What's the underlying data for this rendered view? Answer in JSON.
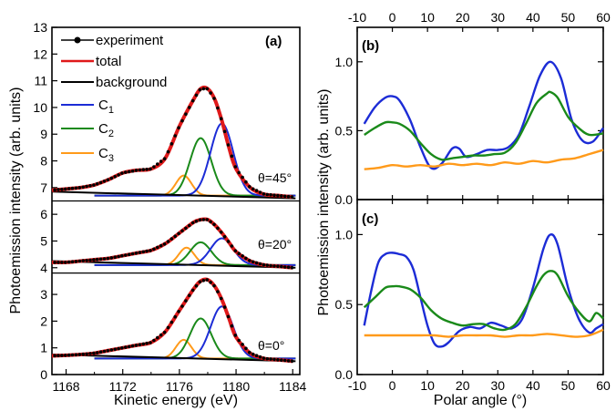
{
  "colors": {
    "experiment": "#000000",
    "total": "#e0191a",
    "background": "#000000",
    "c1": "#1c2cd6",
    "c2": "#1a8a1a",
    "c3": "#ff9a1a"
  },
  "chart_data": [
    {
      "type": "line",
      "panel_label": "(a)",
      "xlabel": "Kinetic energy (eV)",
      "ylabel": "Photoemission intensity (arb. units)",
      "xlim": [
        1167,
        1184.5
      ],
      "ylim": [
        0,
        13
      ],
      "xticks": [
        1168,
        1172,
        1176,
        1180,
        1184
      ],
      "yticks": [
        0,
        1,
        2,
        3,
        4,
        5,
        6,
        7,
        8,
        9,
        10,
        11,
        12,
        13
      ],
      "legend": [
        "experiment",
        "total",
        "background",
        "C1",
        "C2",
        "C3"
      ],
      "legend_placement": "top-left",
      "spectra": [
        {
          "label": "θ=45°",
          "offset": 6.7,
          "background_level": 6.7,
          "total_x": [
            1167,
            1168,
            1169,
            1170,
            1171,
            1172,
            1173,
            1174,
            1175,
            1176,
            1177,
            1177.5,
            1178,
            1178.5,
            1179,
            1179.5,
            1180,
            1181,
            1182,
            1183,
            1184
          ],
          "total_y": [
            6.9,
            6.95,
            7.0,
            7.1,
            7.3,
            7.55,
            7.65,
            7.7,
            8.1,
            9.3,
            10.3,
            10.7,
            10.7,
            10.3,
            9.5,
            8.5,
            7.7,
            7.0,
            6.75,
            6.7,
            6.65
          ],
          "C1_peak": {
            "center": 1179.0,
            "height": 9.4
          },
          "C2_peak": {
            "center": 1177.5,
            "height": 8.85
          },
          "C3_peak": {
            "center": 1176.3,
            "height": 7.45
          }
        },
        {
          "label": "θ=20°",
          "offset": 4.1,
          "background_level": 4.1,
          "total_x": [
            1167,
            1168,
            1169,
            1170,
            1171,
            1172,
            1173,
            1174,
            1175,
            1176,
            1177,
            1177.5,
            1178,
            1178.5,
            1179,
            1179.5,
            1180,
            1181,
            1182,
            1183,
            1184
          ],
          "total_y": [
            4.2,
            4.2,
            4.25,
            4.3,
            4.35,
            4.45,
            4.55,
            4.65,
            4.9,
            5.3,
            5.7,
            5.8,
            5.8,
            5.6,
            5.3,
            4.95,
            4.6,
            4.25,
            4.1,
            4.05,
            4.0
          ],
          "C1_peak": {
            "center": 1179.0,
            "height": 5.1
          },
          "C2_peak": {
            "center": 1177.5,
            "height": 4.95
          },
          "C3_peak": {
            "center": 1176.5,
            "height": 4.75
          }
        },
        {
          "label": "θ=0°",
          "offset": 0.6,
          "background_level": 0.6,
          "total_x": [
            1167,
            1168,
            1169,
            1170,
            1171,
            1172,
            1173,
            1174,
            1175,
            1176,
            1177,
            1177.5,
            1178,
            1178.5,
            1179,
            1179.5,
            1180,
            1181,
            1182,
            1183,
            1184
          ],
          "total_y": [
            0.7,
            0.72,
            0.75,
            0.8,
            0.9,
            1.0,
            1.1,
            1.2,
            1.6,
            2.4,
            3.2,
            3.5,
            3.55,
            3.3,
            2.8,
            2.1,
            1.4,
            0.8,
            0.6,
            0.55,
            0.5
          ],
          "C1_peak": {
            "center": 1179.0,
            "height": 2.55
          },
          "C2_peak": {
            "center": 1177.5,
            "height": 2.1
          },
          "C3_peak": {
            "center": 1176.3,
            "height": 1.3
          }
        }
      ]
    },
    {
      "type": "line",
      "panel_label": "(b)",
      "xlabel": "",
      "ylabel": "Photoemission intensity (arb. units)",
      "xlim": [
        -10,
        60
      ],
      "ylim": [
        0,
        1.25
      ],
      "xticks": [
        -10,
        0,
        10,
        20,
        30,
        40,
        50,
        60
      ],
      "yticks": [
        0.0,
        0.5,
        1.0
      ],
      "series": [
        {
          "color_key": "c1",
          "x": [
            -8,
            -5,
            -2,
            0,
            2,
            5,
            8,
            11,
            14,
            17,
            19,
            21,
            24,
            27,
            30,
            33,
            36,
            39,
            42,
            45,
            48,
            51,
            54,
            57,
            60
          ],
          "y": [
            0.55,
            0.67,
            0.74,
            0.75,
            0.72,
            0.58,
            0.38,
            0.23,
            0.26,
            0.37,
            0.37,
            0.31,
            0.33,
            0.36,
            0.36,
            0.38,
            0.47,
            0.68,
            0.9,
            1.0,
            0.88,
            0.58,
            0.43,
            0.42,
            0.52
          ]
        },
        {
          "color_key": "c2",
          "x": [
            -8,
            -5,
            -2,
            0,
            2,
            5,
            8,
            11,
            14,
            17,
            20,
            23,
            26,
            29,
            32,
            35,
            38,
            41,
            44,
            45,
            47,
            50,
            53,
            56,
            60
          ],
          "y": [
            0.47,
            0.52,
            0.56,
            0.56,
            0.55,
            0.5,
            0.41,
            0.33,
            0.29,
            0.3,
            0.31,
            0.32,
            0.32,
            0.33,
            0.34,
            0.41,
            0.55,
            0.7,
            0.77,
            0.78,
            0.74,
            0.6,
            0.52,
            0.47,
            0.48
          ]
        },
        {
          "color_key": "c3",
          "x": [
            -8,
            -4,
            0,
            4,
            8,
            12,
            16,
            20,
            24,
            28,
            32,
            36,
            40,
            44,
            48,
            52,
            56,
            60
          ],
          "y": [
            0.22,
            0.23,
            0.25,
            0.24,
            0.25,
            0.24,
            0.26,
            0.25,
            0.26,
            0.25,
            0.27,
            0.26,
            0.28,
            0.27,
            0.29,
            0.3,
            0.33,
            0.36
          ]
        }
      ]
    },
    {
      "type": "line",
      "panel_label": "(c)",
      "xlabel": "Polar angle (°)",
      "ylabel": "Photoemission intensity (arb. units)",
      "xlim": [
        -10,
        60
      ],
      "ylim": [
        0,
        1.25
      ],
      "xticks": [
        -10,
        0,
        10,
        20,
        30,
        40,
        50,
        60
      ],
      "yticks": [
        0.0,
        0.5,
        1.0
      ],
      "series": [
        {
          "color_key": "c1",
          "x": [
            -8,
            -6,
            -4,
            -2,
            0,
            2,
            4,
            6,
            8,
            10,
            12,
            14,
            16,
            19,
            22,
            25,
            28,
            31,
            34,
            37,
            40,
            43,
            45,
            47,
            50,
            53,
            56,
            58,
            60
          ],
          "y": [
            0.35,
            0.6,
            0.8,
            0.86,
            0.87,
            0.86,
            0.84,
            0.75,
            0.55,
            0.35,
            0.22,
            0.2,
            0.23,
            0.31,
            0.34,
            0.33,
            0.37,
            0.35,
            0.33,
            0.4,
            0.62,
            0.9,
            1.0,
            0.93,
            0.62,
            0.4,
            0.3,
            0.33,
            0.36
          ]
        },
        {
          "color_key": "c2",
          "x": [
            -8,
            -5,
            -2,
            0,
            2,
            5,
            8,
            11,
            14,
            17,
            20,
            23,
            26,
            29,
            32,
            35,
            38,
            41,
            43,
            45,
            47,
            50,
            53,
            56,
            58,
            60
          ],
          "y": [
            0.48,
            0.55,
            0.62,
            0.63,
            0.63,
            0.61,
            0.55,
            0.46,
            0.4,
            0.37,
            0.35,
            0.36,
            0.36,
            0.33,
            0.32,
            0.36,
            0.48,
            0.63,
            0.71,
            0.74,
            0.71,
            0.56,
            0.45,
            0.38,
            0.44,
            0.4
          ]
        },
        {
          "color_key": "c3",
          "x": [
            -8,
            -4,
            0,
            4,
            8,
            12,
            16,
            20,
            24,
            28,
            32,
            36,
            40,
            44,
            48,
            52,
            56,
            60
          ],
          "y": [
            0.28,
            0.28,
            0.28,
            0.28,
            0.28,
            0.28,
            0.27,
            0.28,
            0.28,
            0.28,
            0.27,
            0.28,
            0.28,
            0.29,
            0.28,
            0.27,
            0.28,
            0.32
          ]
        }
      ]
    }
  ],
  "texts": {
    "legend_experiment": "experiment",
    "legend_total": "total",
    "legend_background": "background",
    "legend_c": "C",
    "sub1": "1",
    "sub2": "2",
    "sub3": "3",
    "label_a": "(a)",
    "label_b": "(b)",
    "label_c": "(c)",
    "theta45": "θ=45°",
    "theta20": "θ=20°",
    "theta0": "θ=0°",
    "xlabel_a": "Kinetic energy (eV)",
    "ylabel_a": "Photoemission intensity (arb. units)",
    "xlabel_bc": "Polar angle (°)",
    "ylabel_bc": "Photoemission intensity (arb. units)"
  }
}
